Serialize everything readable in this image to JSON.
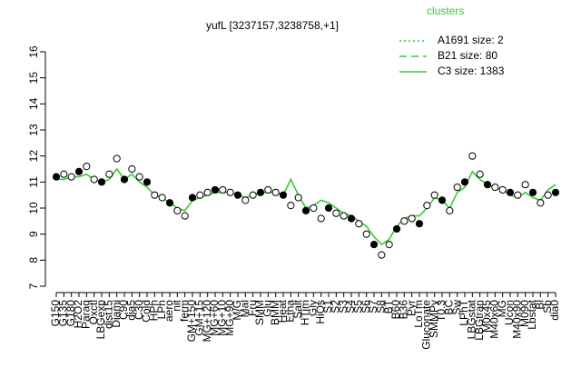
{
  "chart_data": {
    "type": "line",
    "title": "yufL [3237157,3238758,+1]",
    "ylim": [
      7,
      16
    ],
    "yticks": [
      7,
      8,
      9,
      10,
      11,
      12,
      13,
      14,
      15,
      16
    ],
    "legend": {
      "title": "clusters",
      "color": "#33cc33",
      "entries": [
        {
          "name": "A1691 size: 2",
          "dash": "dotted"
        },
        {
          "name": "B21 size: 80",
          "dash": "dashed"
        },
        {
          "name": "C3 size: 1383",
          "dash": "solid"
        }
      ]
    },
    "categories": [
      "G150",
      "G135",
      "G180",
      "H2O2",
      "Paraq",
      "Oxctl",
      "LBGexp",
      "dist15",
      "Diami",
      "C90",
      "dia5",
      "C30",
      "Cold",
      "HPh",
      "LPh",
      "aero",
      "nit",
      "ferm",
      "GM+150",
      "GM+15",
      "MG+120",
      "MG+60",
      "MG+10",
      "MG+90",
      "M/G",
      "Mal",
      "Fru",
      "SMM",
      "Glu",
      "BMM",
      "Heat",
      "Etha",
      "Salt",
      "HTim",
      "Gly",
      "HiOs",
      "S1",
      "S2",
      "S3",
      "S4",
      "S5",
      "S6",
      "S7",
      "S8",
      "BT",
      "B60",
      "B36",
      "Pyr",
      "LoTm",
      "Gluconate",
      "SMMPy",
      "T0.3",
      "BC",
      "Sw",
      "LPhT",
      "LBGstat",
      "LBGtran",
      "M0x45",
      "M40x60",
      "MG",
      "Ucon",
      "M40x90",
      "M090",
      "Lbstat",
      "Bl",
      "Sb",
      "dia0"
    ],
    "series": [
      {
        "name": "C3 size: 1383",
        "color": "#33cc33",
        "marker": "none",
        "values": [
          11.1,
          11.1,
          11.2,
          11.2,
          11.3,
          11.1,
          11.0,
          11.1,
          11.5,
          11.1,
          11.3,
          11.0,
          10.8,
          10.5,
          10.4,
          10.2,
          10.0,
          9.9,
          10.3,
          10.4,
          10.5,
          10.6,
          10.6,
          10.6,
          10.5,
          10.4,
          10.5,
          10.6,
          10.6,
          10.6,
          10.5,
          11.1,
          10.5,
          10.0,
          10.1,
          10.3,
          10.2,
          10.0,
          9.8,
          9.7,
          9.5,
          9.3,
          8.9,
          8.6,
          8.8,
          9.3,
          9.6,
          9.7,
          9.7,
          10.0,
          10.4,
          10.3,
          10.0,
          10.6,
          10.8,
          11.4,
          11.1,
          10.9,
          10.8,
          10.7,
          10.5,
          10.4,
          10.6,
          10.4,
          10.3,
          10.7,
          10.9
        ]
      },
      {
        "name": "points",
        "color": "#000000",
        "marker": "circle",
        "values": [
          11.2,
          11.3,
          11.2,
          11.4,
          11.6,
          11.1,
          11.0,
          11.3,
          11.9,
          11.1,
          11.5,
          11.2,
          11.0,
          10.5,
          10.4,
          10.2,
          9.9,
          9.7,
          10.4,
          10.5,
          10.6,
          10.7,
          10.7,
          10.6,
          10.5,
          10.3,
          10.5,
          10.6,
          10.7,
          10.6,
          10.5,
          10.1,
          10.4,
          9.9,
          10.0,
          9.6,
          10.0,
          9.8,
          9.7,
          9.6,
          9.4,
          9.0,
          8.6,
          8.2,
          8.6,
          9.2,
          9.5,
          9.6,
          9.4,
          10.1,
          10.5,
          10.3,
          9.9,
          10.8,
          11.0,
          12.0,
          11.3,
          10.9,
          10.8,
          10.7,
          10.6,
          10.5,
          10.9,
          10.6,
          10.2,
          10.5,
          10.6
        ]
      }
    ]
  }
}
